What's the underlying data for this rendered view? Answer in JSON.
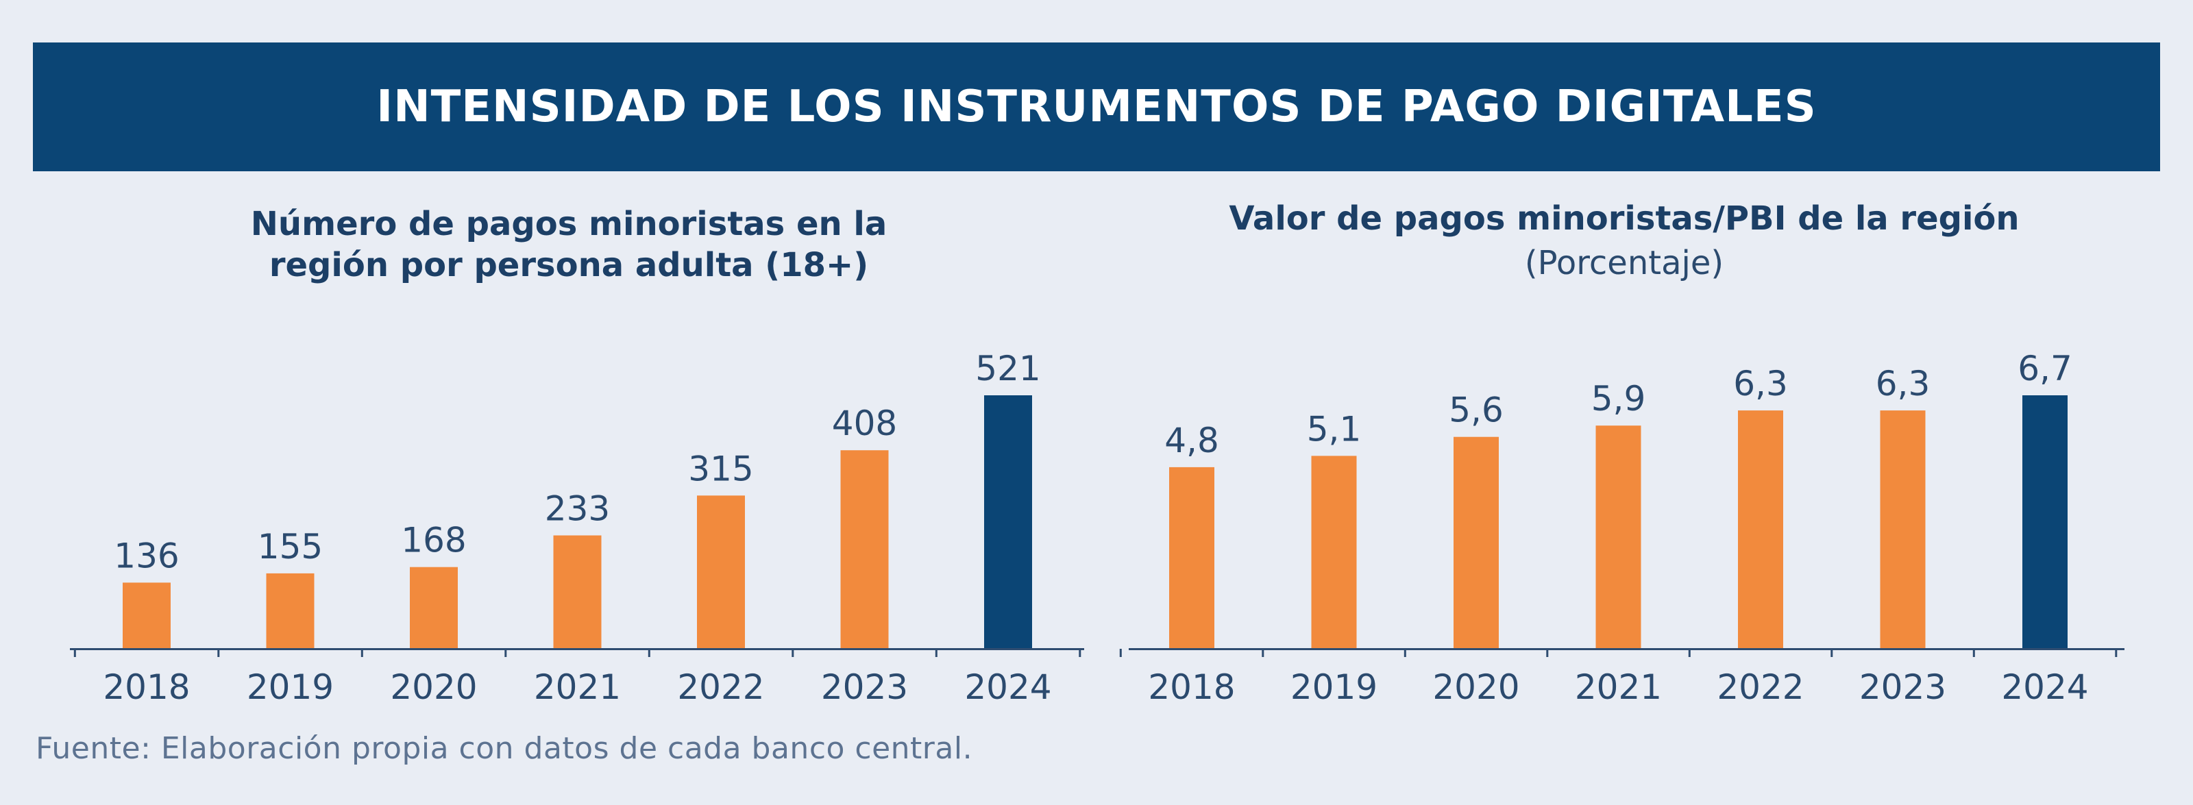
{
  "header": {
    "title": "INTENSIDAD DE LOS INSTRUMENTOS DE PAGO DIGITALES"
  },
  "colors": {
    "banner": "#0b4575",
    "bar_default": "#f28a3d",
    "bar_highlight": "#0b4575",
    "text": "#1c3f66"
  },
  "chart_data": [
    {
      "type": "bar",
      "title_lines": [
        "Número de pagos minoristas en la",
        "región por persona adulta (18+)"
      ],
      "subtitle": "",
      "categories": [
        "2018",
        "2019",
        "2020",
        "2021",
        "2022",
        "2023",
        "2024"
      ],
      "values": [
        136,
        155,
        168,
        233,
        315,
        408,
        521
      ],
      "data_labels": [
        "136",
        "155",
        "168",
        "233",
        "315",
        "408",
        "521"
      ],
      "highlight": "2024",
      "ylim": [
        0,
        521
      ],
      "grid": false,
      "legend": "none"
    },
    {
      "type": "bar",
      "title_lines": [
        "Valor de pagos minoristas/PBI de la región"
      ],
      "subtitle": "(Porcentaje)",
      "categories": [
        "2018",
        "2019",
        "2020",
        "2021",
        "2022",
        "2023",
        "2024"
      ],
      "values": [
        4.8,
        5.1,
        5.6,
        5.9,
        6.3,
        6.3,
        6.7
      ],
      "data_labels": [
        "4,8",
        "5,1",
        "5,6",
        "5,9",
        "6,3",
        "6,3",
        "6,7"
      ],
      "highlight": "2024",
      "ylim": [
        0,
        6.7
      ],
      "grid": false,
      "legend": "none"
    }
  ],
  "footer": {
    "source": "Fuente: Elaboración propia con datos de cada banco central."
  }
}
